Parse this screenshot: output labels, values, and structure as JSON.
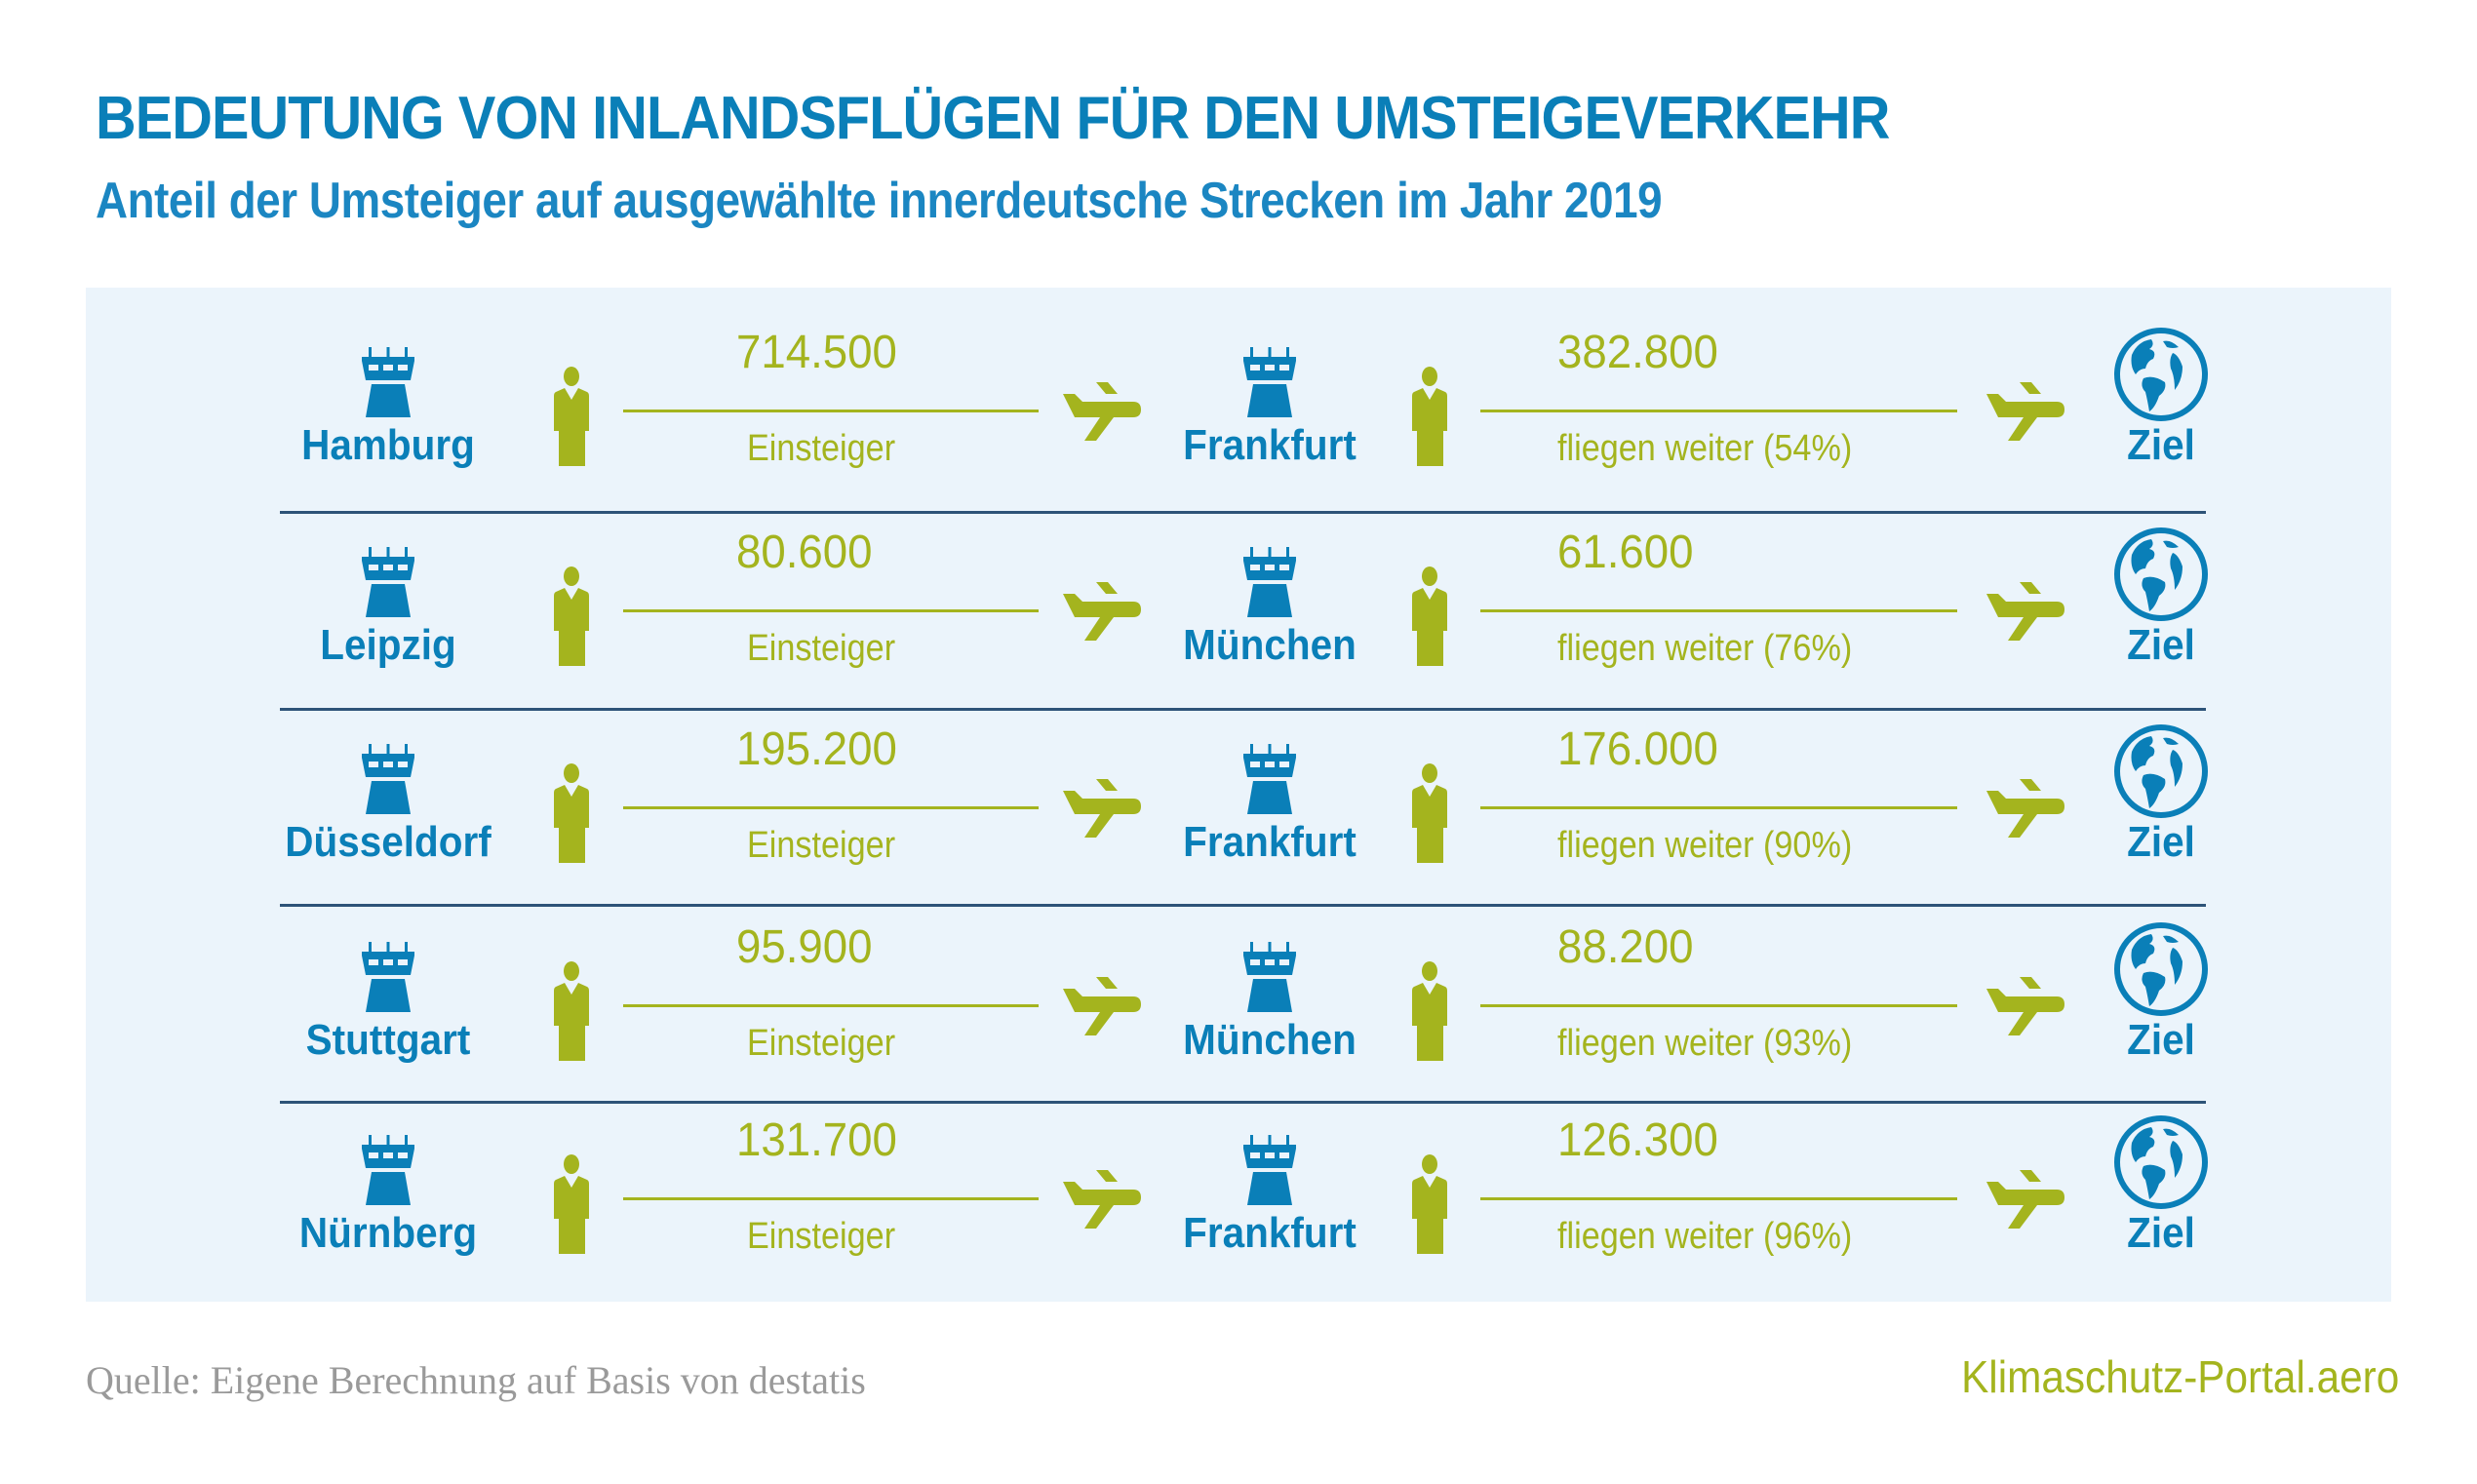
{
  "header": {
    "title": "BEDEUTUNG VON INLANDSFLÜGEN FÜR DEN UMSTEIGEVERKEHR",
    "subtitle": "Anteil der Umsteiger auf ausgewählte innerdeutsche Strecken im Jahr 2019"
  },
  "colors": {
    "blue": "#0a7fb8",
    "green": "#a4b41e",
    "panel": "#ebf4fb",
    "divider": "#2d5378",
    "source_gray": "#9a9a9a"
  },
  "icons": {
    "origin": "control-tower-icon",
    "passenger": "person-icon",
    "flight": "airplane-icon",
    "destination": "globe-icon"
  },
  "routes": [
    {
      "origin": "Hamburg",
      "passengers": "714.500",
      "passengers_label": "Einsteiger",
      "hub": "Frankfurt",
      "transfers": "382.800",
      "transfers_label": "fliegen weiter (54%)",
      "destination": "Ziel"
    },
    {
      "origin": "Leipzig",
      "passengers": "80.600",
      "passengers_label": "Einsteiger",
      "hub": "München",
      "transfers": "61.600",
      "transfers_label": "fliegen weiter (76%)",
      "destination": "Ziel"
    },
    {
      "origin": "Düsseldorf",
      "passengers": "195.200",
      "passengers_label": "Einsteiger",
      "hub": "Frankfurt",
      "transfers": "176.000",
      "transfers_label": "fliegen weiter (90%)",
      "destination": "Ziel"
    },
    {
      "origin": "Stuttgart",
      "passengers": "95.900",
      "passengers_label": "Einsteiger",
      "hub": "München",
      "transfers": "88.200",
      "transfers_label": "fliegen weiter (93%)",
      "destination": "Ziel"
    },
    {
      "origin": "Nürnberg",
      "passengers": "131.700",
      "passengers_label": "Einsteiger",
      "hub": "Frankfurt",
      "transfers": "126.300",
      "transfers_label": "fliegen weiter (96%)",
      "destination": "Ziel"
    }
  ],
  "footer": {
    "source": "Quelle: Eigene Berechnung auf Basis von destatis",
    "brand": "Klimaschutz-Portal.aero"
  }
}
